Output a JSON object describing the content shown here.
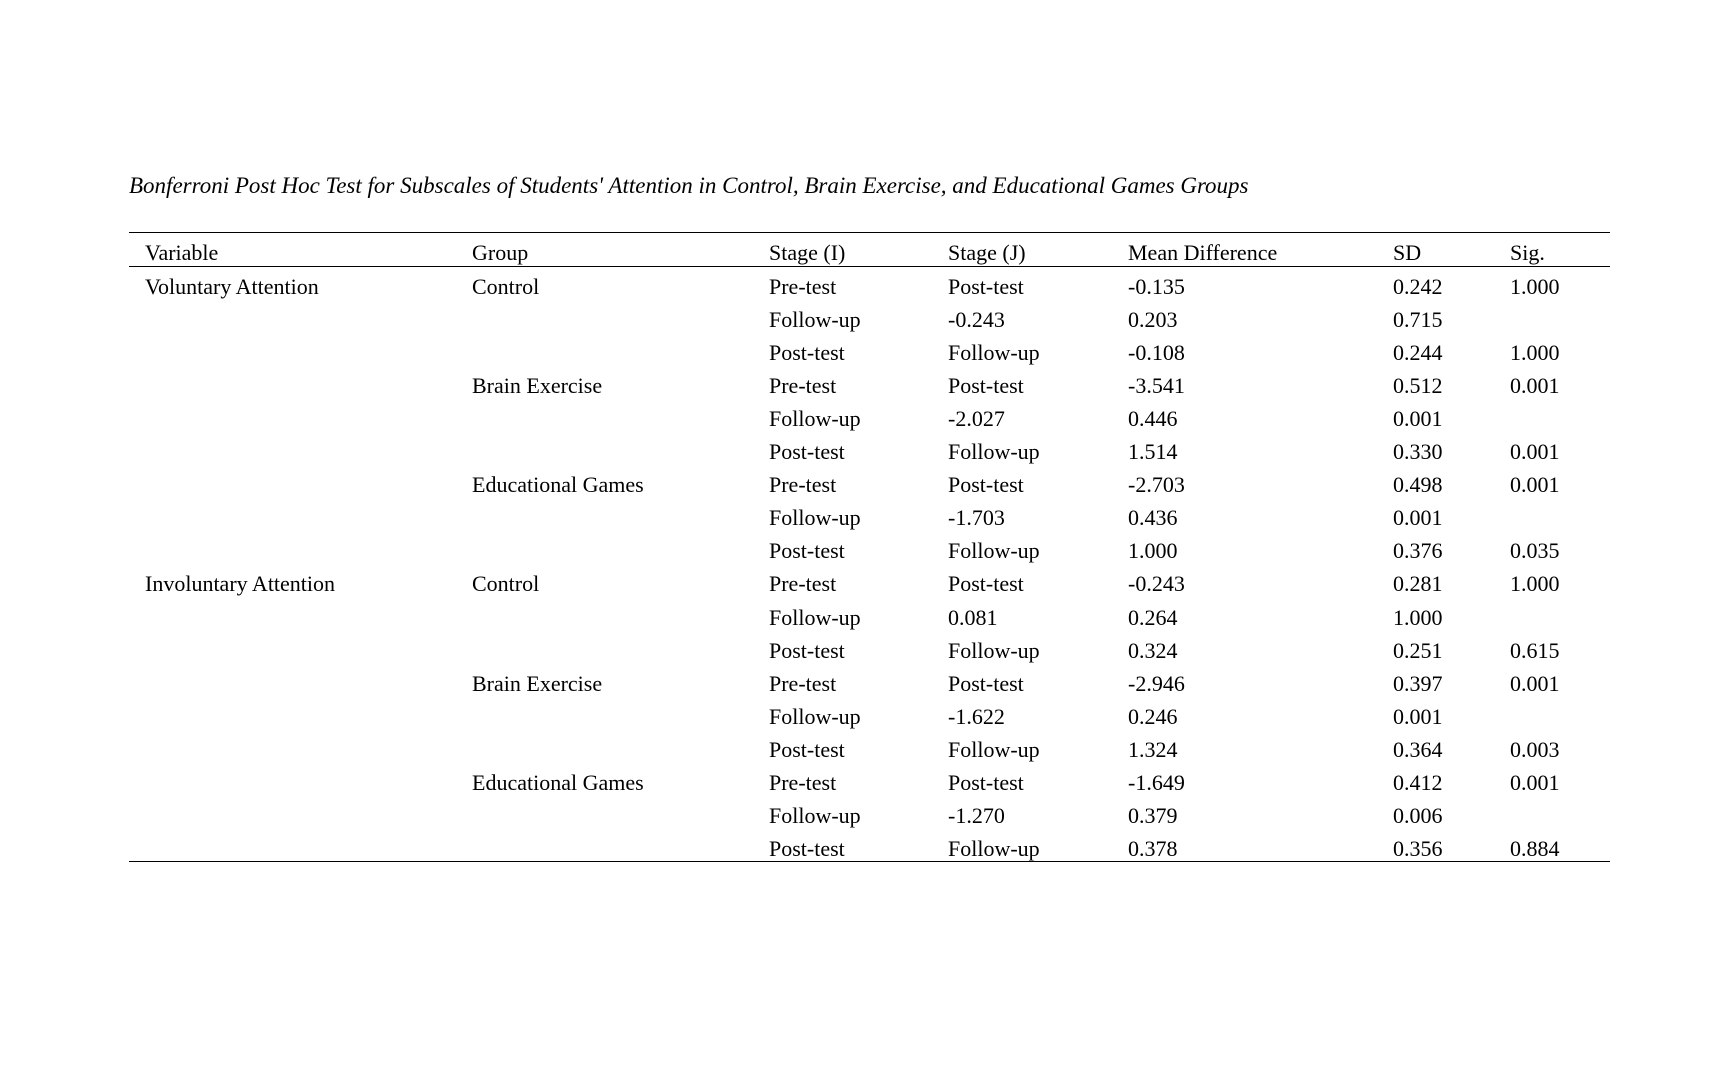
{
  "title": "Bonferroni Post Hoc Test for Subscales of Students' Attention in Control, Brain Exercise, and Educational Games Groups",
  "table": {
    "headers": [
      "Variable",
      "Group",
      "Stage (I)",
      "Stage (J)",
      "Mean Difference",
      "SD",
      "Sig."
    ],
    "rows": [
      [
        "Voluntary Attention",
        "Control",
        "Pre-test",
        "Post-test",
        "-0.135",
        "0.242",
        "1.000"
      ],
      [
        "",
        "",
        "Follow-up",
        "-0.243",
        "0.203",
        "0.715",
        ""
      ],
      [
        "",
        "",
        "Post-test",
        "Follow-up",
        "-0.108",
        "0.244",
        "1.000"
      ],
      [
        "",
        "Brain Exercise",
        "Pre-test",
        "Post-test",
        "-3.541",
        "0.512",
        "0.001"
      ],
      [
        "",
        "",
        "Follow-up",
        "-2.027",
        "0.446",
        "0.001",
        ""
      ],
      [
        "",
        "",
        "Post-test",
        "Follow-up",
        "1.514",
        "0.330",
        "0.001"
      ],
      [
        "",
        "Educational Games",
        "Pre-test",
        "Post-test",
        "-2.703",
        "0.498",
        "0.001"
      ],
      [
        "",
        "",
        "Follow-up",
        "-1.703",
        "0.436",
        "0.001",
        ""
      ],
      [
        "",
        "",
        "Post-test",
        "Follow-up",
        "1.000",
        "0.376",
        "0.035"
      ],
      [
        "Involuntary Attention",
        "Control",
        "Pre-test",
        "Post-test",
        "-0.243",
        "0.281",
        "1.000"
      ],
      [
        "",
        "",
        "Follow-up",
        "0.081",
        "0.264",
        "1.000",
        ""
      ],
      [
        "",
        "",
        "Post-test",
        "Follow-up",
        "0.324",
        "0.251",
        "0.615"
      ],
      [
        "",
        "Brain Exercise",
        "Pre-test",
        "Post-test",
        "-2.946",
        "0.397",
        "0.001"
      ],
      [
        "",
        "",
        "Follow-up",
        "-1.622",
        "0.246",
        "0.001",
        ""
      ],
      [
        "",
        "",
        "Post-test",
        "Follow-up",
        "1.324",
        "0.364",
        "0.003"
      ],
      [
        "",
        "Educational Games",
        "Pre-test",
        "Post-test",
        "-1.649",
        "0.412",
        "0.001"
      ],
      [
        "",
        "",
        "Follow-up",
        "-1.270",
        "0.379",
        "0.006",
        ""
      ],
      [
        "",
        "",
        "Post-test",
        "Follow-up",
        "0.378",
        "0.356",
        "0.884"
      ]
    ]
  }
}
